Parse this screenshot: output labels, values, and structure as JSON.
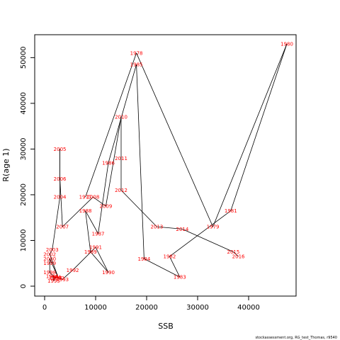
{
  "chart_data": {
    "type": "line",
    "title": "",
    "xlabel": "SSB",
    "ylabel": "R(age 1)",
    "xlim": [
      0,
      48000
    ],
    "ylim": [
      0,
      53000
    ],
    "x_ticks": [
      0,
      10000,
      20000,
      30000,
      40000
    ],
    "y_ticks": [
      0,
      10000,
      20000,
      30000,
      40000,
      50000
    ],
    "x_tick_labels": [
      "0",
      "10000",
      "20000",
      "30000",
      "40000"
    ],
    "y_tick_labels": [
      "0",
      "10000",
      "20000",
      "30000",
      "40000",
      "50000"
    ],
    "grid": false,
    "line_color": "#000000",
    "label_color": "#ff0000",
    "points": [
      {
        "year": "1977",
        "ssb": 8000,
        "r": 19500
      },
      {
        "year": "1978",
        "ssb": 18000,
        "r": 51000
      },
      {
        "year": "1979",
        "ssb": 33000,
        "r": 13000
      },
      {
        "year": "1980",
        "ssb": 47500,
        "r": 53000
      },
      {
        "year": "1981",
        "ssb": 36500,
        "r": 16500
      },
      {
        "year": "1982",
        "ssb": 24500,
        "r": 6500
      },
      {
        "year": "1983",
        "ssb": 26500,
        "r": 2000
      },
      {
        "year": "1984",
        "ssb": 19500,
        "r": 6000
      },
      {
        "year": "1985",
        "ssb": 18000,
        "r": 48500
      },
      {
        "year": "1986",
        "ssb": 12500,
        "r": 27000
      },
      {
        "year": "1987",
        "ssb": 10500,
        "r": 11500
      },
      {
        "year": "1988",
        "ssb": 8000,
        "r": 16500
      },
      {
        "year": "1989",
        "ssb": 9000,
        "r": 7500
      },
      {
        "year": "1990",
        "ssb": 12500,
        "r": 3000
      },
      {
        "year": "1991",
        "ssb": 10000,
        "r": 8500
      },
      {
        "year": "1992",
        "ssb": 5500,
        "r": 3500
      },
      {
        "year": "1993",
        "ssb": 3500,
        "r": 1500
      },
      {
        "year": "1994",
        "ssb": 2000,
        "r": 2000
      },
      {
        "year": "1995",
        "ssb": 1800,
        "r": 1200
      },
      {
        "year": "1996",
        "ssb": 1500,
        "r": 2200
      },
      {
        "year": "1997",
        "ssb": 2200,
        "r": 1800
      },
      {
        "year": "1998",
        "ssb": 1000,
        "r": 3000
      },
      {
        "year": "1999",
        "ssb": 1000,
        "r": 5000
      },
      {
        "year": "2000",
        "ssb": 1000,
        "r": 6000
      },
      {
        "year": "2001",
        "ssb": 2700,
        "r": 1800
      },
      {
        "year": "2002",
        "ssb": 1000,
        "r": 7000
      },
      {
        "year": "2003",
        "ssb": 1500,
        "r": 8000
      },
      {
        "year": "2004",
        "ssb": 3000,
        "r": 19500
      },
      {
        "year": "2005",
        "ssb": 3000,
        "r": 30000
      },
      {
        "year": "2006",
        "ssb": 3000,
        "r": 23500
      },
      {
        "year": "2007",
        "ssb": 3500,
        "r": 13000
      },
      {
        "year": "2008",
        "ssb": 9500,
        "r": 19500
      },
      {
        "year": "2009",
        "ssb": 12000,
        "r": 17500
      },
      {
        "year": "2010",
        "ssb": 15000,
        "r": 37000
      },
      {
        "year": "2011",
        "ssb": 15000,
        "r": 28000
      },
      {
        "year": "2012",
        "ssb": 15000,
        "r": 21000
      },
      {
        "year": "2013",
        "ssb": 22000,
        "r": 13000
      },
      {
        "year": "2014",
        "ssb": 27000,
        "r": 12500
      },
      {
        "year": "2015",
        "ssb": 37000,
        "r": 7500
      },
      {
        "year": "2016",
        "ssb": 38000,
        "r": 6500
      }
    ]
  },
  "caption": "stockassessment.org, RG_test_Thomas, r9540"
}
